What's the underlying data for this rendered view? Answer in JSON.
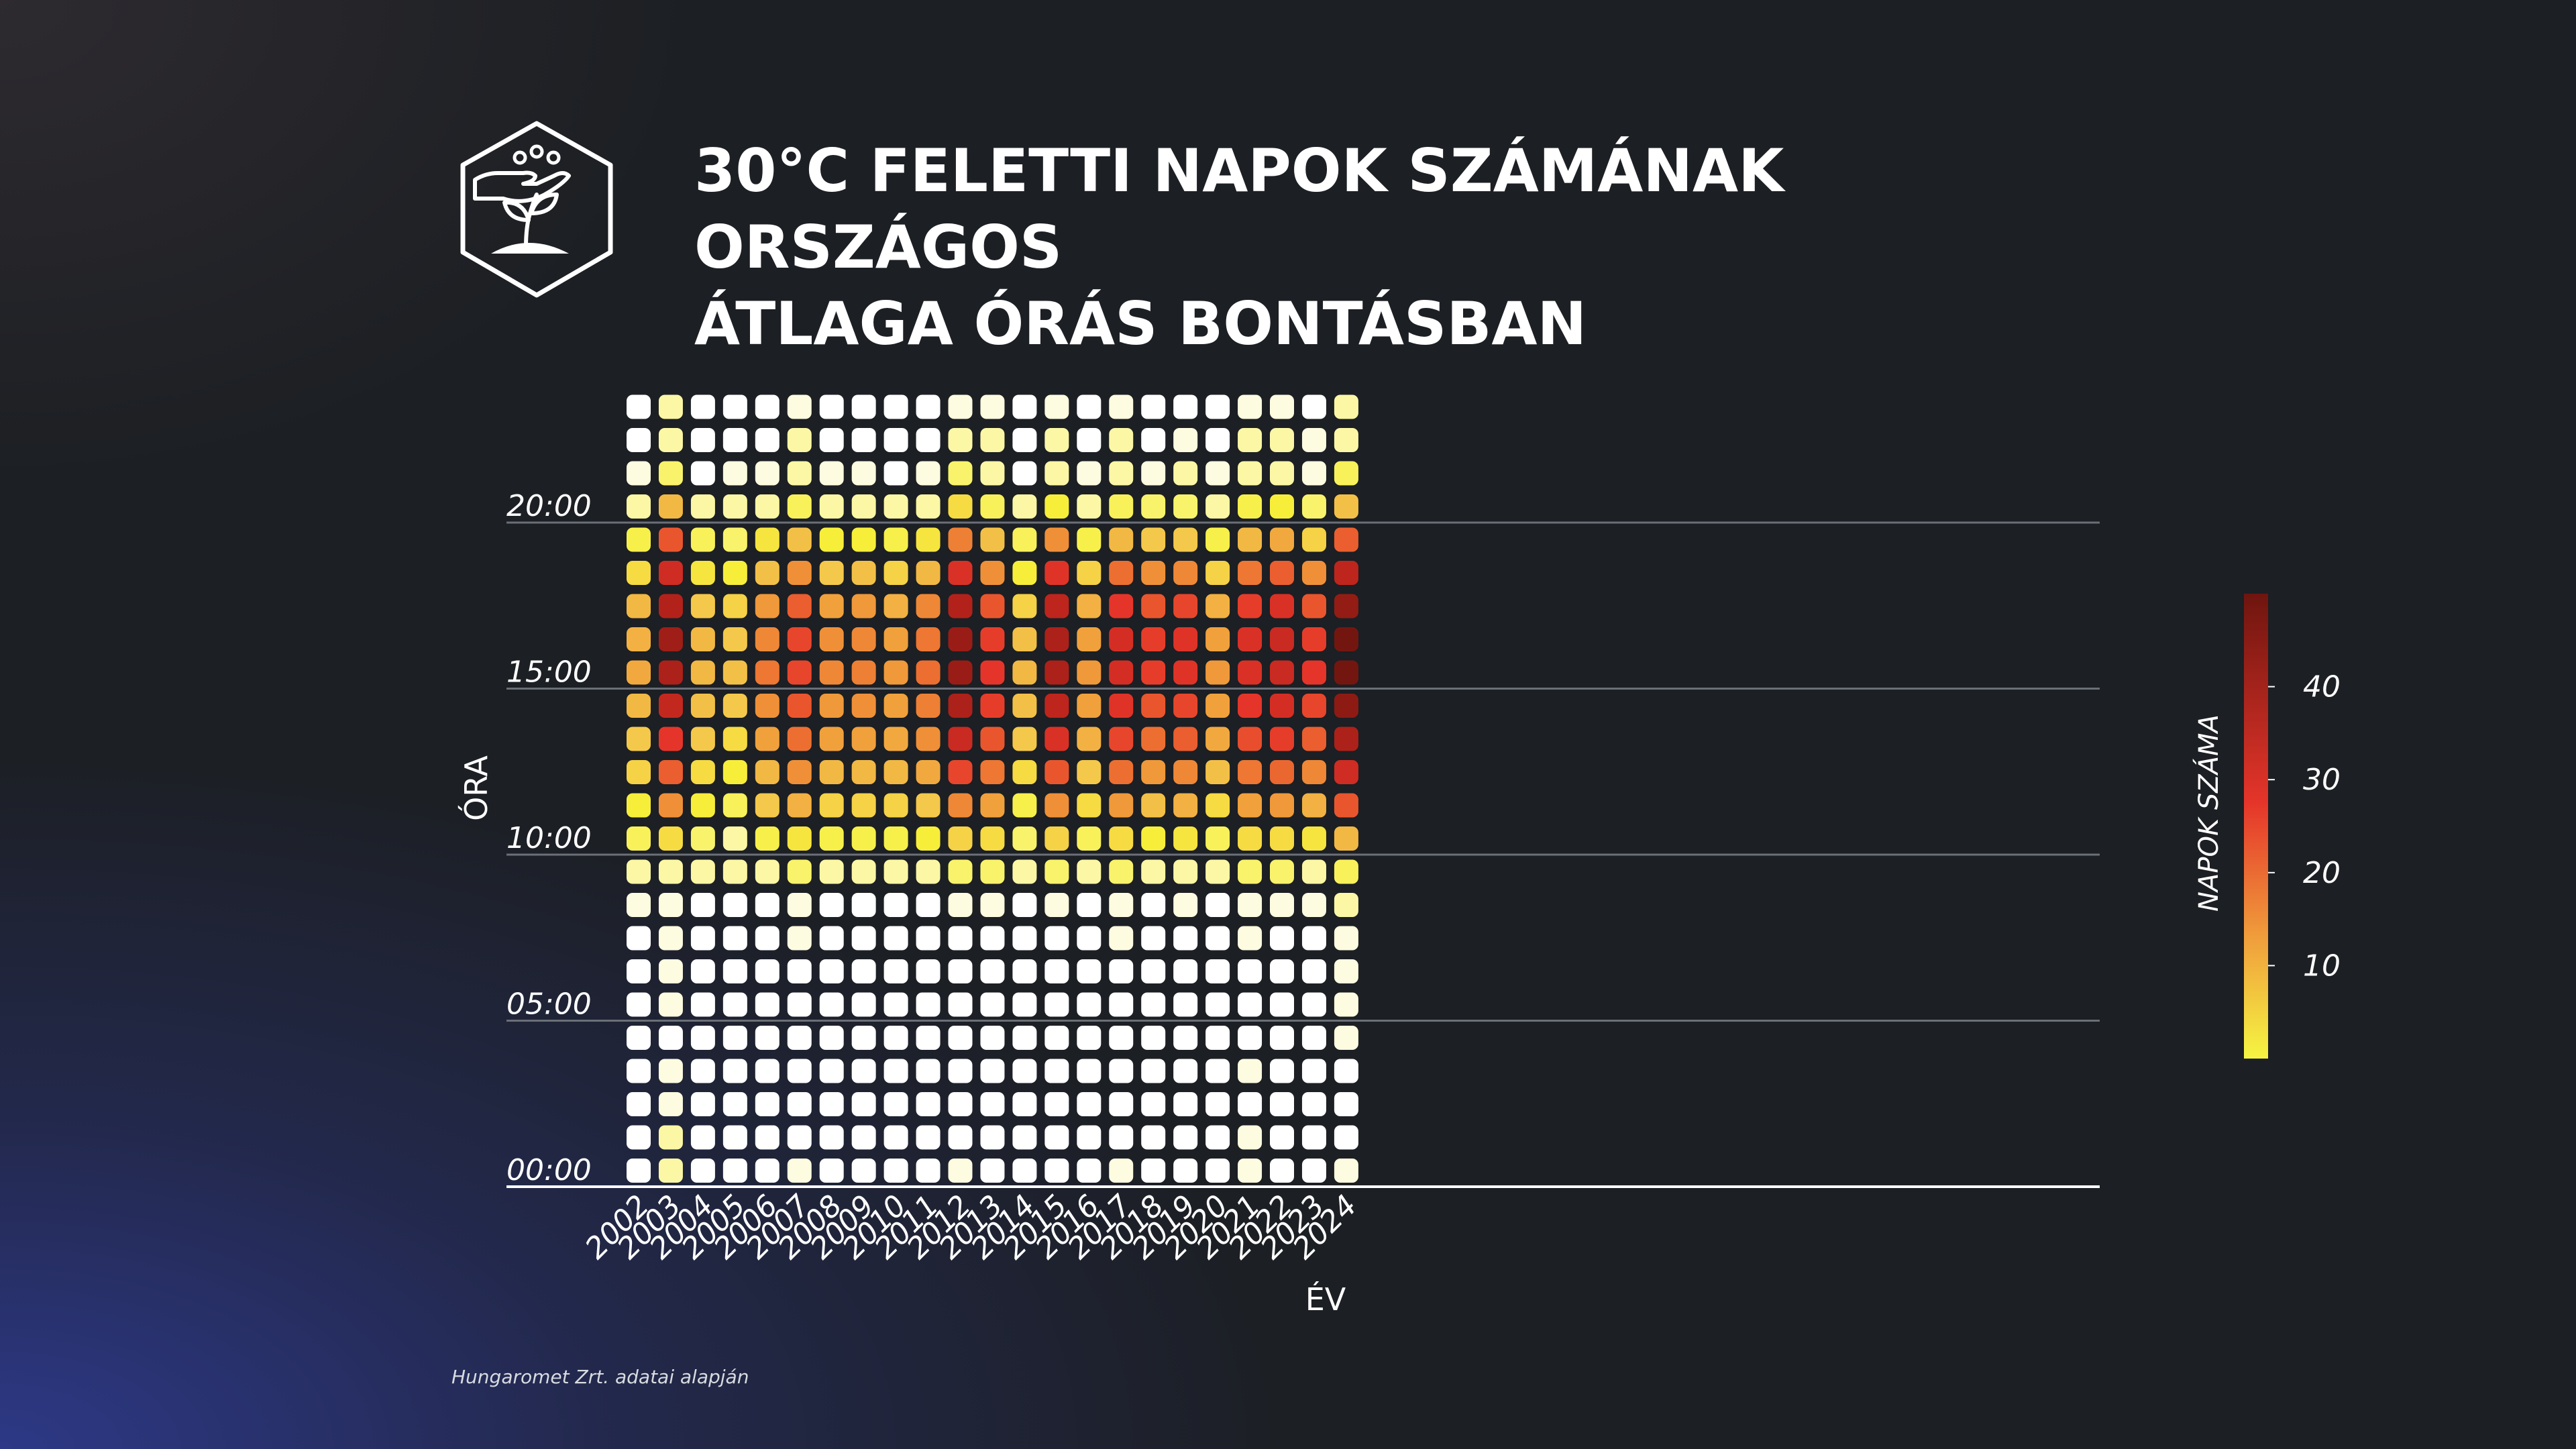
{
  "title_line1": "30°C FELETTI NAPOK SZÁMÁNAK ORSZÁGOS",
  "title_line2": "ÁTLAGA ÓRÁS BONTÁSBAN",
  "source": "Hungaromet Zrt. adatai alapján",
  "logo_icon": "hand-planting-sprout-hexagon-icon",
  "colors": {
    "background": "#1c1f23",
    "text": "#ffffff",
    "gridline": "#6b6f77",
    "axis": "#ffffff"
  },
  "chart_data": {
    "type": "heatmap",
    "title": "30°C FELETTI NAPOK SZÁMÁNAK ORSZÁGOS ÁTLAGA ÓRÁS BONTÁSBAN",
    "xlabel": "ÉV",
    "ylabel": "ÓRA",
    "x": [
      2002,
      2003,
      2004,
      2005,
      2006,
      2007,
      2008,
      2009,
      2010,
      2011,
      2012,
      2013,
      2014,
      2015,
      2016,
      2017,
      2018,
      2019,
      2020,
      2021,
      2022,
      2023,
      2024
    ],
    "y": [
      0,
      1,
      2,
      3,
      4,
      5,
      6,
      7,
      8,
      9,
      10,
      11,
      12,
      13,
      14,
      15,
      16,
      17,
      18,
      19,
      20,
      21,
      22,
      23
    ],
    "y_tick_labels": [
      "00:00",
      "05:00",
      "10:00",
      "15:00",
      "20:00"
    ],
    "y_tick_hours": [
      0,
      5,
      10,
      15,
      20
    ],
    "grid": true,
    "colorbar": {
      "label": "NAPOK SZÁMA",
      "ticks": [
        10,
        20,
        30,
        40
      ],
      "range": [
        0,
        50
      ],
      "colors": [
        "#f5f542",
        "#f0a13c",
        "#e5352a",
        "#6e150f"
      ]
    },
    "values": [
      [
        0,
        0,
        0,
        0,
        0,
        0,
        0,
        0,
        1,
        2,
        4,
        6,
        9,
        10,
        12,
        14,
        13,
        12,
        8,
        5,
        2,
        1,
        0,
        0
      ],
      [
        2,
        2,
        1,
        1,
        0,
        1,
        1,
        1,
        1,
        2,
        8,
        17,
        23,
        28,
        34,
        38,
        40,
        37,
        32,
        24,
        12,
        3,
        2,
        2
      ],
      [
        0,
        0,
        0,
        0,
        0,
        0,
        0,
        0,
        0,
        2,
        3,
        6,
        8,
        10,
        11,
        12,
        12,
        10,
        7,
        4,
        2,
        0,
        0,
        0
      ],
      [
        0,
        0,
        0,
        0,
        0,
        0,
        0,
        0,
        0,
        2,
        2,
        4,
        6,
        8,
        10,
        11,
        10,
        9,
        6,
        3,
        2,
        1,
        0,
        0
      ],
      [
        0,
        0,
        0,
        0,
        0,
        0,
        0,
        0,
        0,
        2,
        5,
        10,
        12,
        15,
        17,
        20,
        18,
        16,
        11,
        7,
        2,
        1,
        0,
        0
      ],
      [
        1,
        0,
        0,
        0,
        0,
        0,
        0,
        1,
        1,
        3,
        7,
        13,
        17,
        21,
        24,
        26,
        26,
        23,
        17,
        11,
        4,
        2,
        2,
        1
      ],
      [
        0,
        0,
        0,
        0,
        0,
        0,
        0,
        0,
        0,
        2,
        5,
        9,
        12,
        15,
        16,
        18,
        17,
        15,
        10,
        6,
        2,
        1,
        0,
        0
      ],
      [
        0,
        0,
        0,
        0,
        0,
        0,
        0,
        0,
        0,
        2,
        5,
        9,
        12,
        15,
        17,
        19,
        18,
        16,
        11,
        6,
        2,
        1,
        0,
        0
      ],
      [
        0,
        0,
        0,
        0,
        0,
        0,
        0,
        0,
        0,
        2,
        5,
        9,
        12,
        14,
        15,
        16,
        15,
        13,
        9,
        5,
        2,
        0,
        0,
        0
      ],
      [
        0,
        0,
        0,
        0,
        0,
        0,
        0,
        0,
        0,
        2,
        6,
        10,
        14,
        17,
        19,
        21,
        20,
        18,
        12,
        7,
        2,
        1,
        0,
        0
      ],
      [
        1,
        0,
        0,
        0,
        0,
        0,
        0,
        0,
        1,
        3,
        9,
        18,
        26,
        33,
        38,
        41,
        41,
        37,
        30,
        19,
        8,
        3,
        2,
        1
      ],
      [
        0,
        0,
        0,
        0,
        0,
        0,
        0,
        0,
        1,
        3,
        8,
        15,
        20,
        24,
        27,
        28,
        27,
        24,
        17,
        11,
        4,
        2,
        2,
        1
      ],
      [
        0,
        0,
        0,
        0,
        0,
        0,
        0,
        0,
        0,
        2,
        3,
        5,
        8,
        10,
        11,
        12,
        11,
        9,
        6,
        4,
        2,
        0,
        0,
        0
      ],
      [
        0,
        0,
        0,
        0,
        0,
        0,
        0,
        0,
        1,
        3,
        9,
        17,
        24,
        30,
        35,
        38,
        38,
        35,
        29,
        17,
        6,
        2,
        2,
        1
      ],
      [
        0,
        0,
        0,
        0,
        0,
        0,
        0,
        0,
        0,
        2,
        4,
        8,
        10,
        13,
        15,
        16,
        15,
        13,
        9,
        5,
        2,
        1,
        0,
        0
      ],
      [
        1,
        0,
        0,
        0,
        0,
        0,
        0,
        1,
        1,
        3,
        8,
        16,
        21,
        26,
        29,
        31,
        31,
        28,
        21,
        12,
        4,
        2,
        2,
        1
      ],
      [
        0,
        0,
        0,
        0,
        0,
        0,
        0,
        0,
        0,
        2,
        6,
        11,
        16,
        21,
        24,
        27,
        27,
        24,
        17,
        10,
        3,
        1,
        0,
        0
      ],
      [
        0,
        0,
        0,
        0,
        0,
        0,
        0,
        0,
        1,
        2,
        7,
        13,
        18,
        23,
        26,
        29,
        29,
        26,
        18,
        10,
        3,
        2,
        1,
        0
      ],
      [
        0,
        0,
        0,
        0,
        0,
        0,
        0,
        0,
        0,
        2,
        4,
        8,
        11,
        14,
        15,
        16,
        15,
        13,
        9,
        5,
        2,
        1,
        0,
        0
      ],
      [
        1,
        1,
        0,
        1,
        0,
        0,
        0,
        1,
        1,
        3,
        8,
        15,
        20,
        25,
        28,
        30,
        30,
        27,
        20,
        12,
        5,
        2,
        2,
        1
      ],
      [
        0,
        0,
        0,
        0,
        0,
        0,
        0,
        0,
        1,
        3,
        8,
        16,
        22,
        27,
        31,
        33,
        33,
        30,
        23,
        14,
        6,
        2,
        2,
        1
      ],
      [
        0,
        0,
        0,
        0,
        0,
        0,
        0,
        0,
        1,
        2,
        7,
        13,
        18,
        23,
        26,
        28,
        27,
        24,
        17,
        9,
        3,
        1,
        1,
        0
      ],
      [
        1,
        0,
        0,
        0,
        1,
        1,
        1,
        1,
        2,
        4,
        12,
        24,
        32,
        38,
        43,
        47,
        47,
        42,
        35,
        23,
        11,
        4,
        2,
        2
      ]
    ]
  }
}
